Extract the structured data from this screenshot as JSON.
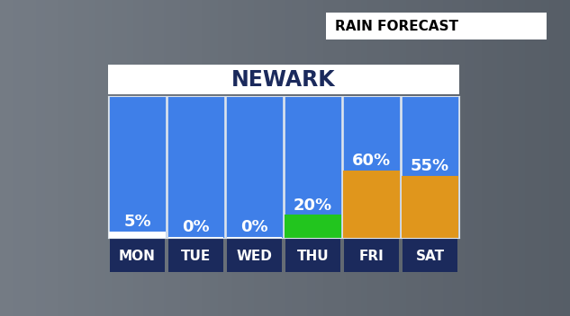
{
  "chart_data": {
    "type": "bar",
    "title": "NEWARK",
    "subtitle": "RAIN FORECAST",
    "categories": [
      "MON",
      "TUE",
      "WED",
      "THU",
      "FRI",
      "SAT"
    ],
    "values": [
      5,
      0,
      0,
      20,
      60,
      55
    ],
    "value_labels": [
      "5%",
      "0%",
      "0%",
      "20%",
      "60%",
      "55%"
    ],
    "colors": [
      "#ffffff",
      "#ffffff",
      "#ffffff",
      "#22c51e",
      "#e0961c",
      "#e0961c"
    ],
    "ylim": [
      0,
      128
    ],
    "data_labels": true,
    "tick_labels": "x",
    "grid": false
  }
}
